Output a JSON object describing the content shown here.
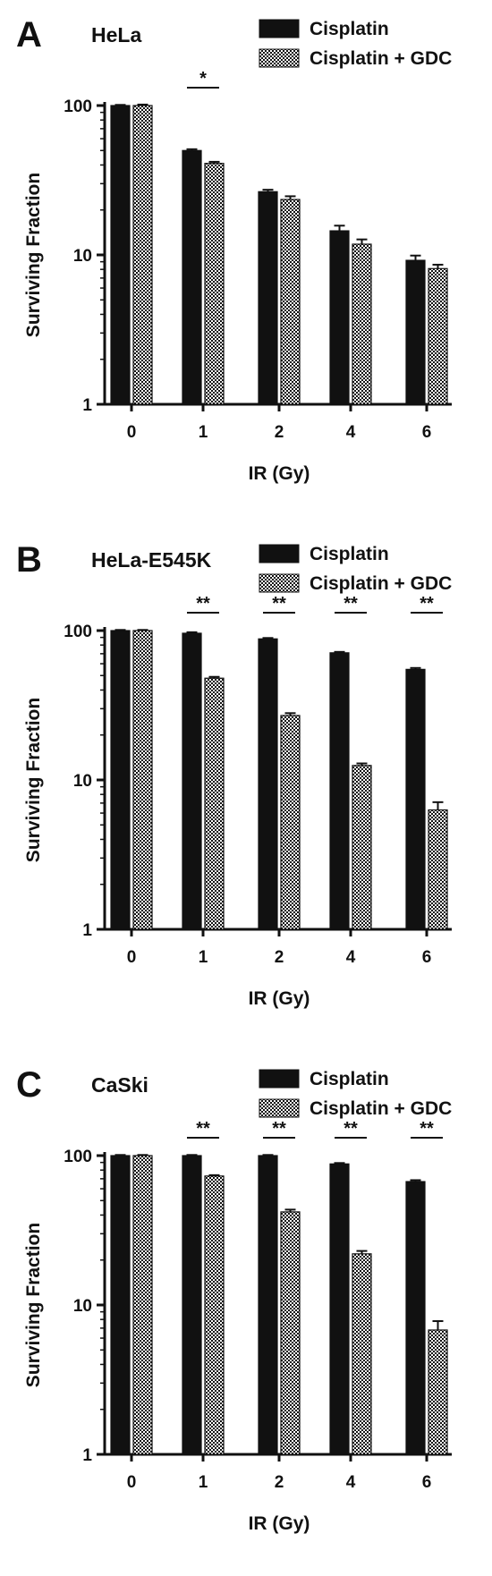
{
  "chart_data": [
    {
      "type": "bar",
      "panel": "A",
      "title": "HeLa",
      "xlabel": "IR (Gy)",
      "ylabel": "Surviving Fraction",
      "yscale": "log",
      "ylim": [
        1,
        100
      ],
      "yticks": [
        "1",
        "10",
        "100"
      ],
      "categories": [
        "0",
        "1",
        "2",
        "4",
        "6"
      ],
      "legend_position": "top-right",
      "series": [
        {
          "name": "Cisplatin",
          "pattern": "solid",
          "values": [
            100,
            50,
            26.5,
            14.5,
            9.2
          ],
          "errors": [
            1.0,
            1.0,
            0.8,
            1.2,
            0.7
          ]
        },
        {
          "name": "Cisplatin + GDC",
          "pattern": "checker",
          "values": [
            100,
            41,
            23.5,
            11.8,
            8.1
          ],
          "errors": [
            1.5,
            1.0,
            1.2,
            0.9,
            0.5
          ]
        }
      ],
      "significance": [
        {
          "category": "1",
          "label": "*"
        }
      ]
    },
    {
      "type": "bar",
      "panel": "B",
      "title": "HeLa-E545K",
      "xlabel": "IR (Gy)",
      "ylabel": "Surviving Fraction",
      "yscale": "log",
      "ylim": [
        1,
        100
      ],
      "yticks": [
        "1",
        "10",
        "100"
      ],
      "categories": [
        "0",
        "1",
        "2",
        "4",
        "6"
      ],
      "legend_position": "top-right",
      "series": [
        {
          "name": "Cisplatin",
          "pattern": "solid",
          "values": [
            100,
            96,
            88,
            71,
            55
          ],
          "errors": [
            1.0,
            1.5,
            1.2,
            1.0,
            1.2
          ]
        },
        {
          "name": "Cisplatin + GDC",
          "pattern": "checker",
          "values": [
            100,
            48,
            27,
            12.5,
            6.3
          ],
          "errors": [
            1.0,
            1.0,
            1.0,
            0.4,
            0.8
          ]
        }
      ],
      "significance": [
        {
          "category": "1",
          "label": "**"
        },
        {
          "category": "2",
          "label": "**"
        },
        {
          "category": "4",
          "label": "**"
        },
        {
          "category": "6",
          "label": "**"
        }
      ]
    },
    {
      "type": "bar",
      "panel": "C",
      "title": "CaSki",
      "xlabel": "IR (Gy)",
      "ylabel": "Surviving Fraction",
      "yscale": "log",
      "ylim": [
        1,
        100
      ],
      "yticks": [
        "1",
        "10",
        "100"
      ],
      "categories": [
        "0",
        "1",
        "2",
        "4",
        "6"
      ],
      "legend_position": "top-right",
      "series": [
        {
          "name": "Cisplatin",
          "pattern": "solid",
          "values": [
            100,
            100,
            100,
            88,
            67
          ],
          "errors": [
            1.0,
            1.0,
            1.0,
            1.2,
            1.5
          ]
        },
        {
          "name": "Cisplatin + GDC",
          "pattern": "checker",
          "values": [
            100,
            73,
            42,
            22,
            6.8
          ],
          "errors": [
            1.0,
            1.0,
            1.5,
            1.0,
            1.0
          ]
        }
      ],
      "significance": [
        {
          "category": "1",
          "label": "**"
        },
        {
          "category": "2",
          "label": "**"
        },
        {
          "category": "4",
          "label": "**"
        },
        {
          "category": "6",
          "label": "**"
        }
      ]
    }
  ]
}
